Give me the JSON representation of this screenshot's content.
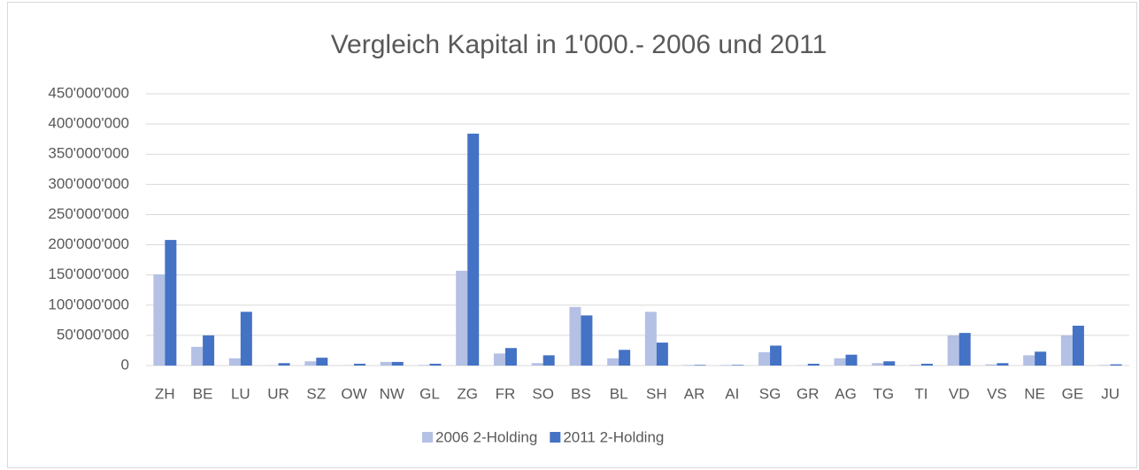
{
  "chart_data": {
    "type": "bar",
    "title": "Vergleich Kapital in 1'000.- 2006 und 2011",
    "categories": [
      "ZH",
      "BE",
      "LU",
      "UR",
      "SZ",
      "OW",
      "NW",
      "GL",
      "ZG",
      "FR",
      "SO",
      "BS",
      "BL",
      "SH",
      "AR",
      "AI",
      "SG",
      "GR",
      "AG",
      "TG",
      "TI",
      "VD",
      "VS",
      "NE",
      "GE",
      "JU"
    ],
    "series": [
      {
        "name": "2006 2-Holding",
        "color": "#b4c0e4",
        "values": [
          151000000,
          31000000,
          12000000,
          500000,
          7000000,
          500000,
          6000000,
          1000000,
          157000000,
          20000000,
          4000000,
          97000000,
          12000000,
          89000000,
          1000000,
          1000000,
          22000000,
          500000,
          12000000,
          4000000,
          1000000,
          50000000,
          2000000,
          17000000,
          50000000,
          1000000
        ]
      },
      {
        "name": "2011 2-Holding",
        "color": "#4472c4",
        "values": [
          208000000,
          50000000,
          89000000,
          4000000,
          13000000,
          3000000,
          6000000,
          3000000,
          384000000,
          29000000,
          17000000,
          83000000,
          26000000,
          38000000,
          1000000,
          1000000,
          33000000,
          3000000,
          18000000,
          7000000,
          3000000,
          54000000,
          4000000,
          23000000,
          66000000,
          2000000
        ]
      }
    ],
    "ylim": [
      0,
      450000000
    ],
    "yticks": [
      0,
      {
        "value": 50000000,
        "label": "50'000'000"
      },
      {
        "value": 100000000,
        "label": "100'000'000"
      },
      {
        "value": 150000000,
        "label": "150'000'000"
      },
      {
        "value": 200000000,
        "label": "200'000'000"
      },
      {
        "value": 250000000,
        "label": "250'000'000"
      },
      {
        "value": 300000000,
        "label": "300'000'000"
      },
      {
        "value": 350000000,
        "label": "350'000'000"
      },
      {
        "value": 400000000,
        "label": "400'000'000"
      },
      {
        "value": 450000000,
        "label": "450'000'000"
      }
    ],
    "grid": true,
    "legend": "bottom"
  }
}
